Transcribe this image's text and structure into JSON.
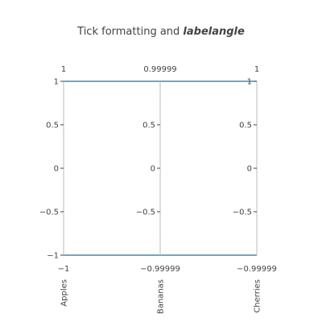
{
  "chart_data": {
    "type": "parcoords",
    "title": {
      "text": "Tick formatting and ",
      "emphasis": "labelangle"
    },
    "line_color": "#2a6e8f",
    "axis_color": "#bbbbbb",
    "dimensions": [
      {
        "label": "Apples",
        "range": [
          -1,
          1
        ],
        "tick_values": [
          1,
          0.5,
          0,
          -0.5,
          -1
        ],
        "tick_labels": [
          "1",
          "0.5",
          "0",
          "−0.5",
          "−1"
        ],
        "range_min_label": "−1",
        "range_max_label": "1",
        "label_angle": "vertical"
      },
      {
        "label": "Bananas",
        "range": [
          -0.99999,
          0.99999
        ],
        "tick_values": [
          0.5,
          0,
          -0.5
        ],
        "tick_labels": [
          "0.5",
          "0",
          "−0.5"
        ],
        "range_min_label": "−0.99999",
        "range_max_label": "0.99999",
        "label_angle": "vertical"
      },
      {
        "label": "Cherries",
        "range": [
          -0.99999,
          1
        ],
        "tick_values": [
          1,
          0.5,
          0,
          -0.5
        ],
        "tick_labels": [
          "1",
          "0.5",
          "0",
          "−0.5"
        ],
        "range_min_label": "−0.99999",
        "range_max_label": "1",
        "label_angle": "vertical"
      }
    ],
    "lines": [
      {
        "values": [
          1,
          1,
          1
        ]
      },
      {
        "values": [
          -1,
          -1,
          -1
        ]
      }
    ]
  }
}
